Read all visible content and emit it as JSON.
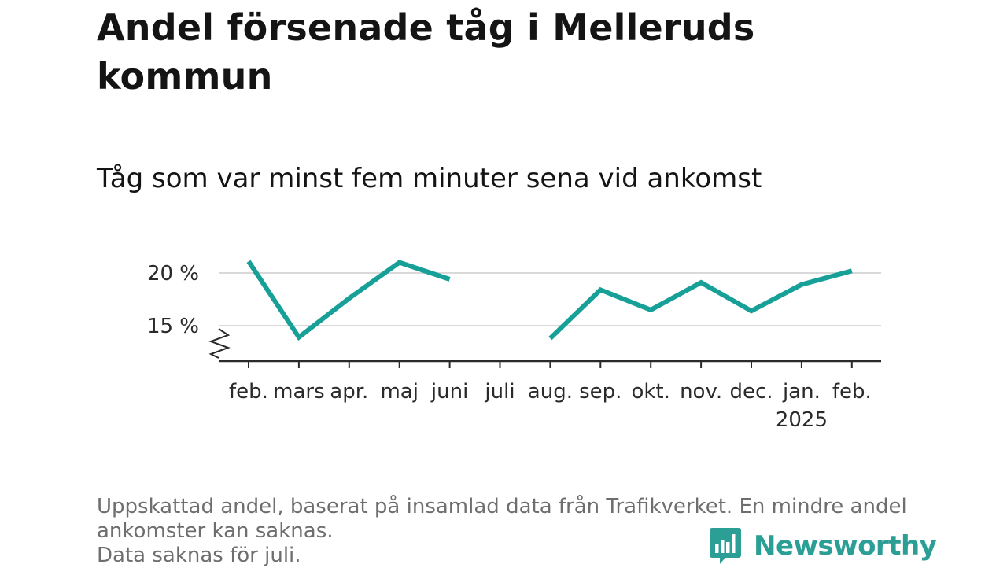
{
  "title": "Andel försenade tåg i Melleruds kommun",
  "subtitle": "Tåg som var minst fem minuter sena vid ankomst",
  "chart_data": {
    "type": "line",
    "categories": [
      "feb.",
      "mars",
      "apr.",
      "maj",
      "juni",
      "juli",
      "aug.",
      "sep.",
      "okt.",
      "nov.",
      "dec.",
      "jan.",
      "feb."
    ],
    "category_sublabels": [
      "",
      "",
      "",
      "",
      "",
      "",
      "",
      "",
      "",
      "",
      "",
      "2025",
      ""
    ],
    "series": [
      {
        "values": [
          21.1,
          13.9,
          17.6,
          21.0,
          19.4,
          null,
          13.8,
          18.4,
          16.5,
          19.1,
          16.4,
          18.9,
          20.2
        ],
        "color": "#17a097"
      }
    ],
    "y_ticks": [
      15,
      20
    ],
    "y_tick_labels": [
      "15 %",
      "20 %"
    ],
    "ylim": [
      11.9,
      21.8
    ],
    "y_axis_break": true,
    "grid": true,
    "xlabel": "",
    "ylabel": ""
  },
  "footnote": {
    "line1": "Uppskattad andel, baserat på insamlad data från Trafikverket. En mindre andel ankomster kan saknas.",
    "line2": "Data saknas för juli."
  },
  "brand": {
    "name": "Newsworthy",
    "icon": "bar-chart-speech-bubble-icon",
    "color": "#2b9e95"
  }
}
